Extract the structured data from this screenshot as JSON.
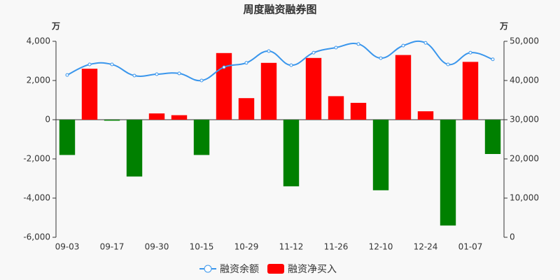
{
  "chart_data": {
    "type": "bar_line",
    "title": "周度融资融券图",
    "y_unit": "万",
    "y2_unit": "万",
    "categories": [
      "09-03",
      null,
      "09-17",
      null,
      "09-30",
      null,
      "10-15",
      null,
      "10-29",
      null,
      "11-12",
      null,
      "11-26",
      null,
      "12-10",
      null,
      "12-24",
      null,
      "01-07",
      null
    ],
    "series": [
      {
        "name": "融资余额",
        "type": "line",
        "axis": "y2",
        "color": "#3a96ec",
        "values": [
          41400,
          44100,
          44100,
          41250,
          41600,
          41800,
          40000,
          43400,
          44500,
          47500,
          43900,
          47100,
          48400,
          49300,
          45700,
          48900,
          49600,
          44100,
          47100,
          45400
        ]
      },
      {
        "name": "融资净买入",
        "type": "bar",
        "color": "#ff0000",
        "negative_color": "#008000",
        "values": [
          -1800,
          2600,
          -50,
          -2900,
          320,
          230,
          -1800,
          3400,
          1100,
          2900,
          -3400,
          3150,
          1200,
          860,
          -3600,
          3300,
          430,
          -5400,
          2950,
          -1750
        ]
      }
    ],
    "ylim": [
      -6000,
      4000
    ],
    "yticks": [
      {
        "value": -6000,
        "label": "-6,000"
      },
      {
        "value": -4000,
        "label": "-4,000"
      },
      {
        "value": -2000,
        "label": "-2,000"
      },
      0,
      {
        "value": 2000,
        "label": "2,000"
      },
      {
        "value": 4000,
        "label": "4,000"
      }
    ],
    "y2lim": [
      0,
      50000
    ],
    "y2ticks": [
      0,
      {
        "value": 10000,
        "label": "10,000"
      },
      {
        "value": 20000,
        "label": "20,000"
      },
      {
        "value": 30000,
        "label": "30,000"
      },
      {
        "value": 40000,
        "label": "40,000"
      },
      {
        "value": 50000,
        "label": "50,000"
      }
    ],
    "grid": false,
    "legend": "bottom"
  }
}
